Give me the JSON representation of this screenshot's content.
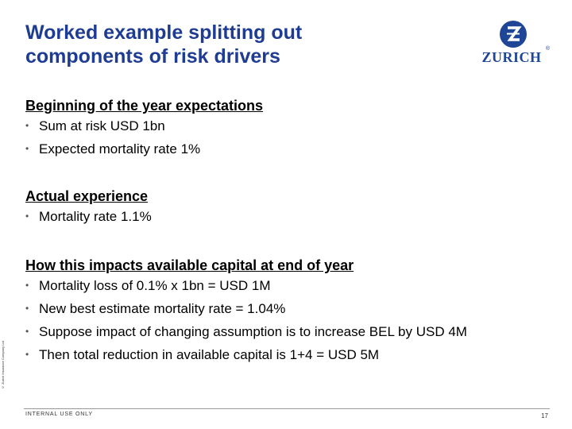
{
  "slide": {
    "title_line1": "Worked example splitting out",
    "title_line2": "components of risk drivers",
    "brand": {
      "name": "ZURICH",
      "reg_mark": "®",
      "color": "#1f4596"
    },
    "title_color": "#1f3c93"
  },
  "sections": [
    {
      "heading": "Beginning of the year expectations",
      "bullets": [
        "Sum at risk USD 1bn",
        "Expected mortality rate 1%"
      ]
    },
    {
      "heading": "Actual experience",
      "bullets": [
        "Mortality rate 1.1%"
      ]
    },
    {
      "heading": "How this impacts available capital at end of year",
      "bullets": [
        "Mortality loss of 0.1% x 1bn = USD 1M",
        "New best estimate mortality rate = 1.04%",
        "Suppose impact of changing assumption is to increase BEL by USD 4M",
        "Then total reduction in available capital is 1+4 = USD 5M"
      ]
    }
  ],
  "bullet_glyph": "•",
  "footer": {
    "label": "INTERNAL USE ONLY",
    "page_number": "17",
    "copyright": "© Zurich Insurance Company Ltd"
  }
}
